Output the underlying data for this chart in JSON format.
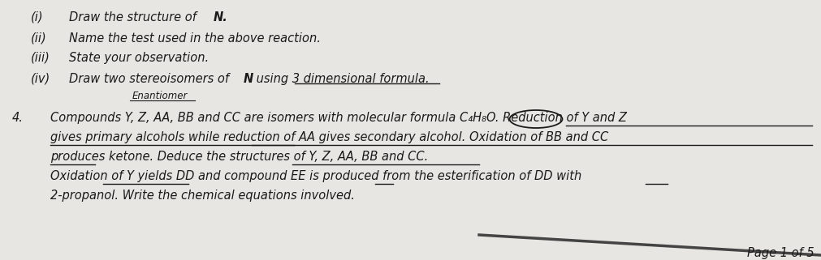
{
  "background_color": "#e8e6e2",
  "page_label": "Page 1 of 5",
  "font_size": 10.5,
  "text_color": "#1a1a1a",
  "line_i": {
    "roman": "(i)",
    "body": "Draw the structure of N."
  },
  "line_ii": {
    "roman": "(ii)",
    "body": "Name the test used in the above reaction."
  },
  "line_iii": {
    "roman": "(iii)",
    "body": "State your observation."
  },
  "line_iv": {
    "roman": "(iv)",
    "body": "Draw two stereoisomers of N using 3 dimensional formula."
  },
  "enantiomer_label": "Enantiomer",
  "number4": "4.",
  "para": [
    "Compounds Y, Z, AA, BB and CC are isomers with molecular formula C₄H₈O. Reduction of Y and Z",
    "gives primary alcohols while reduction of AA gives secondary alcohol. Oxidation of BB and CC",
    "produces ketone. Deduce the structures of Y, Z, AA, BB and CC.",
    "Oxidation of Y yields DD and compound EE is produced from the esterification of DD with",
    "2-propanol. Write the chemical equations involved."
  ]
}
